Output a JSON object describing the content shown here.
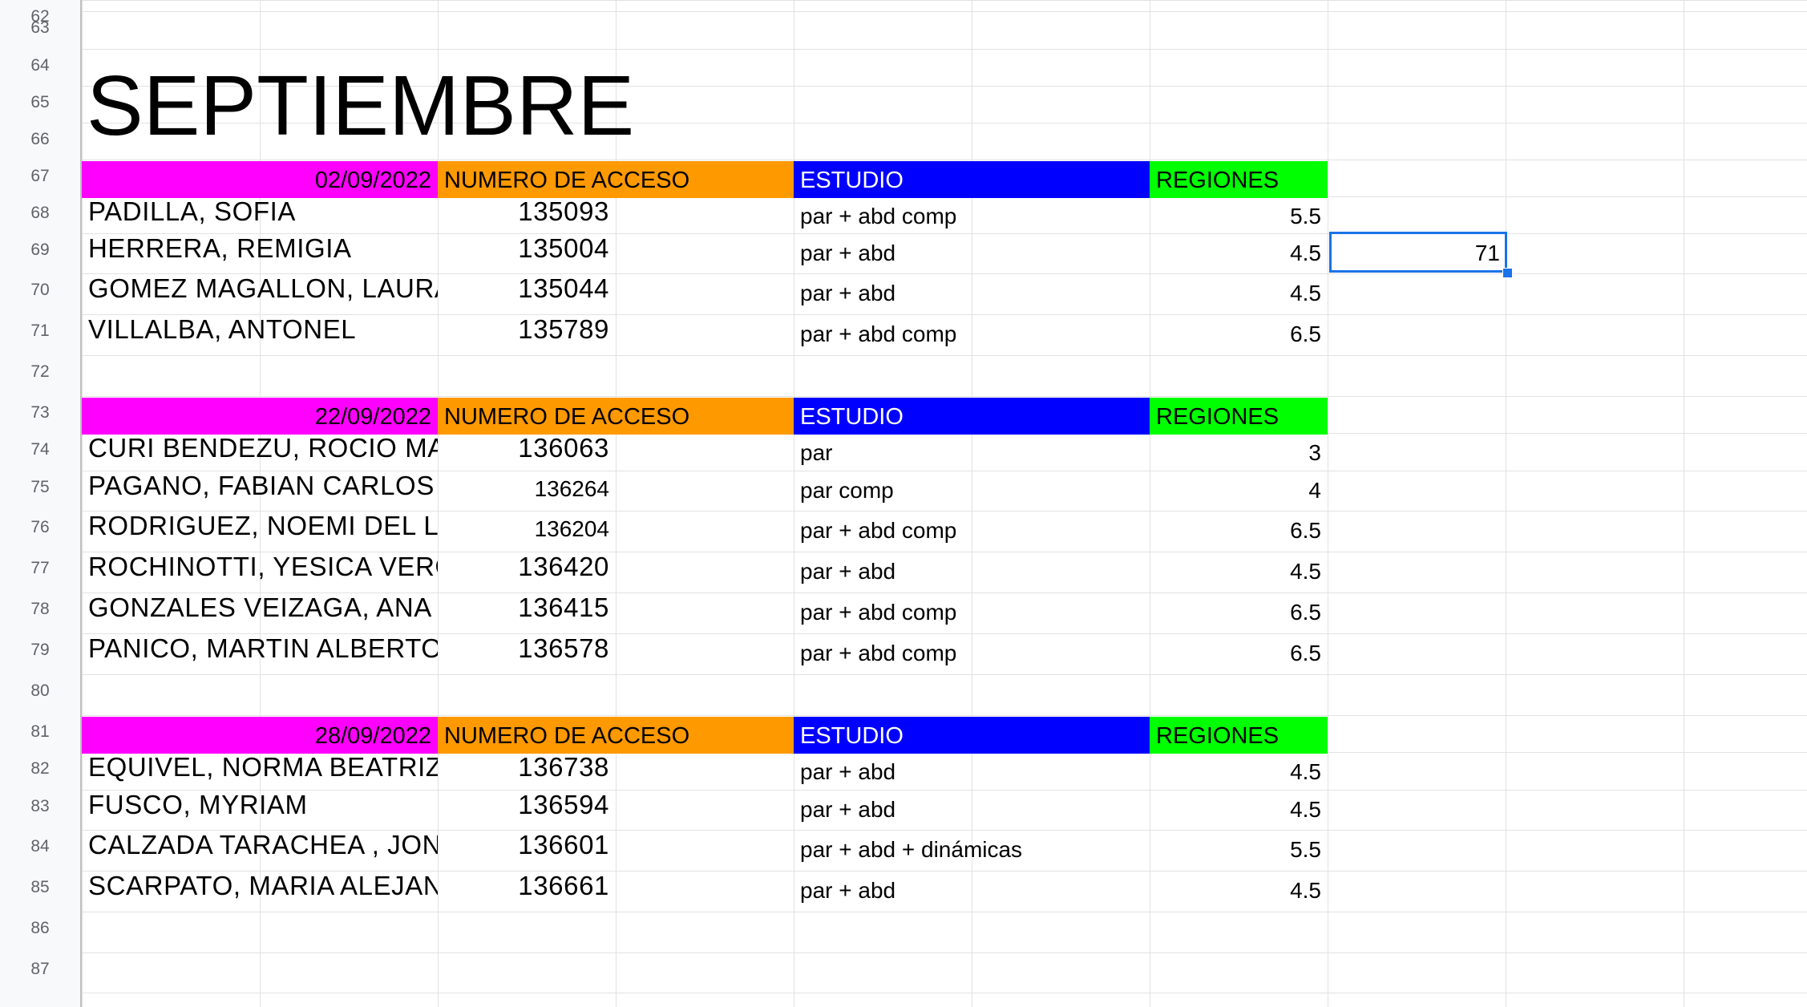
{
  "sheet": {
    "title": "SEPTIEMBRE",
    "row_numbers": [
      "62",
      "63",
      "64",
      "65",
      "66",
      "67",
      "68",
      "69",
      "70",
      "71",
      "72",
      "73",
      "74",
      "75",
      "76",
      "77",
      "78",
      "79",
      "80",
      "81",
      "82",
      "83",
      "84",
      "85",
      "86",
      "87"
    ],
    "selected_cell_value": "71",
    "colors": {
      "date": "#ff00ff",
      "acceso": "#ff9900",
      "estudio": "#0000ff",
      "regiones": "#00ff00",
      "selection": "#1a73e8"
    },
    "groups": [
      {
        "header": {
          "date": "02/09/2022",
          "acceso": "NUMERO DE ACCESO",
          "estudio": "ESTUDIO",
          "regiones": "REGIONES"
        },
        "rows": [
          {
            "name": "PADILLA, SOFIA",
            "acceso": "135093",
            "estudio": "par + abd comp",
            "regiones": "5.5"
          },
          {
            "name": "HERRERA, REMIGIA",
            "acceso": "135004",
            "estudio": "par + abd",
            "regiones": "4.5"
          },
          {
            "name": "GOMEZ MAGALLON, LAURA",
            "acceso": "135044",
            "estudio": "par + abd",
            "regiones": "4.5"
          },
          {
            "name": "VILLALBA, ANTONEL",
            "acceso": "135789",
            "estudio": "par + abd comp",
            "regiones": "6.5"
          }
        ]
      },
      {
        "header": {
          "date": "22/09/2022",
          "acceso": "NUMERO DE ACCESO",
          "estudio": "ESTUDIO",
          "regiones": "REGIONES"
        },
        "rows": [
          {
            "name": "CURI BENDEZU, ROCIO MA",
            "acceso": "136063",
            "estudio": "par",
            "regiones": "3"
          },
          {
            "name": "PAGANO, FABIAN CARLOS",
            "acceso": "136264",
            "estudio": "par comp",
            "regiones": "4"
          },
          {
            "name": "RODRIGUEZ, NOEMI DEL L",
            "acceso": "136204",
            "estudio": "par + abd comp",
            "regiones": "6.5"
          },
          {
            "name": "ROCHINOTTI, YESICA VERO",
            "acceso": "136420",
            "estudio": "par + abd",
            "regiones": "4.5"
          },
          {
            "name": "GONZALES VEIZAGA, ANA",
            "acceso": "136415",
            "estudio": "par + abd comp",
            "regiones": "6.5"
          },
          {
            "name": "PANICO, MARTIN ALBERTO",
            "acceso": "136578",
            "estudio": "par + abd comp",
            "regiones": "6.5"
          }
        ]
      },
      {
        "header": {
          "date": "28/09/2022",
          "acceso": "NUMERO DE ACCESO",
          "estudio": "ESTUDIO",
          "regiones": "REGIONES"
        },
        "rows": [
          {
            "name": "EQUIVEL, NORMA BEATRIZ",
            "acceso": "136738",
            "estudio": "par + abd",
            "regiones": "4.5"
          },
          {
            "name": "FUSCO, MYRIAM",
            "acceso": "136594",
            "estudio": "par + abd",
            "regiones": "4.5"
          },
          {
            "name": "CALZADA TARACHEA , JON",
            "acceso": "136601",
            "estudio": "par + abd + dinámicas",
            "regiones": "5.5"
          },
          {
            "name": "SCARPATO, MARIA ALEJAN",
            "acceso": "136661",
            "estudio": "par + abd",
            "regiones": "4.5"
          }
        ]
      }
    ]
  }
}
